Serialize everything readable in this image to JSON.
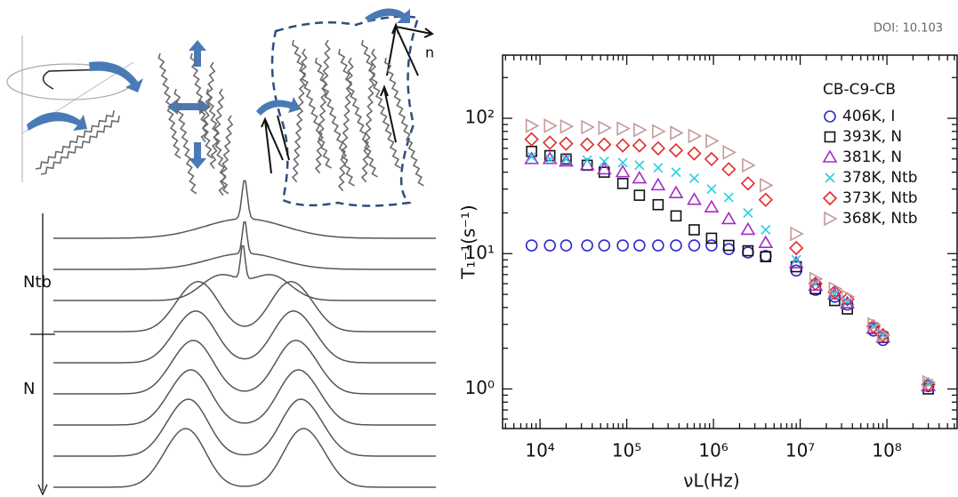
{
  "doi": "DOI: 10.103",
  "figure": {
    "phase_ntb": "Ntb",
    "phase_n": "N",
    "director": "n"
  },
  "chart_data": {
    "type": "scatter",
    "x_label": "νL(Hz)",
    "y_label": "T₁⁻¹(s⁻¹)",
    "legend_title": "CB-C9-CB",
    "legend": "upper-right",
    "x_log": true,
    "y_log": true,
    "minor_ticks": true,
    "xlim": [
      3700,
      660000000
    ],
    "ylim": [
      0.51,
      293
    ],
    "xticks": [
      {
        "value": 10000,
        "label": "10⁴"
      },
      {
        "value": 100000,
        "label": "10⁵"
      },
      {
        "value": 1000000,
        "label": "10⁶"
      },
      {
        "value": 10000000,
        "label": "10⁷"
      },
      {
        "value": 100000000,
        "label": "10⁸"
      }
    ],
    "yticks": [
      {
        "value": 1,
        "label": "10⁰"
      },
      {
        "value": 10,
        "label": "10¹"
      },
      {
        "value": 100,
        "label": "10²"
      }
    ],
    "series": [
      {
        "name": "406K, I",
        "color": "#2a2ad0",
        "marker": "circle",
        "x": [
          8000,
          13000,
          20000,
          35000,
          55000,
          90000,
          140000,
          230000,
          370000,
          600000,
          950000,
          1500000,
          2500000,
          4000000,
          9000000,
          15000000,
          25000000,
          35000000,
          70000000,
          90000000,
          300000000
        ],
        "values": [
          11.5,
          11.5,
          11.5,
          11.5,
          11.5,
          11.5,
          11.5,
          11.5,
          11.5,
          11.5,
          11.5,
          10.8,
          10.2,
          9.6,
          7.5,
          5.4,
          4.8,
          4.2,
          2.7,
          2.3,
          1.05
        ]
      },
      {
        "name": "393K, N",
        "color": "#111111",
        "marker": "square",
        "x": [
          8000,
          13000,
          20000,
          35000,
          55000,
          90000,
          140000,
          230000,
          370000,
          600000,
          950000,
          1500000,
          2500000,
          4000000,
          9000000,
          15000000,
          25000000,
          35000000,
          70000000,
          90000000,
          300000000
        ],
        "values": [
          57,
          53,
          50,
          45,
          40,
          33,
          27,
          23,
          19,
          15,
          13,
          11.5,
          10.5,
          9.5,
          8,
          5.5,
          4.5,
          3.9,
          2.8,
          2.4,
          1.0
        ]
      },
      {
        "name": "381K, N",
        "color": "#a52ac8",
        "marker": "triangle",
        "x": [
          8000,
          13000,
          20000,
          35000,
          55000,
          90000,
          140000,
          230000,
          370000,
          600000,
          950000,
          1500000,
          2500000,
          4000000,
          9000000,
          15000000,
          25000000,
          35000000,
          70000000,
          90000000,
          300000000
        ],
        "values": [
          50,
          50,
          48,
          45,
          42,
          40,
          36,
          32,
          28,
          25,
          22,
          18,
          15,
          12,
          8.5,
          5.8,
          5,
          4.3,
          2.8,
          2.4,
          1.05
        ]
      },
      {
        "name": "378K, Ntb",
        "color": "#22d0e0",
        "marker": "x",
        "x": [
          8000,
          13000,
          20000,
          35000,
          55000,
          90000,
          140000,
          230000,
          370000,
          600000,
          950000,
          1500000,
          2500000,
          4000000,
          9000000,
          15000000,
          25000000,
          35000000,
          70000000,
          90000000,
          300000000
        ],
        "values": [
          52,
          50,
          50,
          49,
          48,
          47,
          45,
          43,
          40,
          36,
          30,
          26,
          20,
          15,
          9,
          6,
          5,
          4.4,
          2.9,
          2.5,
          1.1
        ]
      },
      {
        "name": "373K, Ntb",
        "color": "#e02a2a",
        "marker": "diamond",
        "x": [
          8000,
          13000,
          20000,
          35000,
          55000,
          90000,
          140000,
          230000,
          370000,
          600000,
          950000,
          1500000,
          2500000,
          4000000,
          9000000,
          15000000,
          25000000,
          35000000,
          70000000,
          90000000,
          300000000
        ],
        "values": [
          70,
          66,
          65,
          64,
          64,
          63,
          63,
          60,
          58,
          55,
          50,
          42,
          33,
          25,
          11,
          6,
          5.2,
          4.6,
          2.9,
          2.5,
          1.08
        ]
      },
      {
        "name": "368K, Ntb",
        "color": "#c49a9a",
        "marker": "rtriangle",
        "x": [
          8000,
          13000,
          20000,
          35000,
          55000,
          90000,
          140000,
          230000,
          370000,
          600000,
          950000,
          1500000,
          2500000,
          4000000,
          9000000,
          15000000,
          25000000,
          35000000,
          70000000,
          90000000,
          300000000
        ],
        "values": [
          88,
          88,
          87,
          86,
          85,
          84,
          82,
          80,
          78,
          74,
          68,
          56,
          45,
          32,
          14,
          6.5,
          5.5,
          4.8,
          3,
          2.5,
          1.12
        ]
      }
    ]
  }
}
